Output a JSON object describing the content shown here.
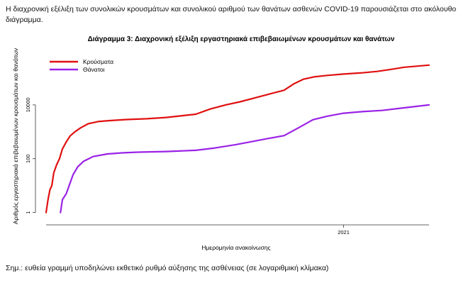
{
  "intro_text": "Η διαχρονική εξέλιξη των συνολικών κρουσμάτων και συνολικού αριθμού των θανάτων ασθενών COVID-19 παρουσιάζεται στο ακόλουθο διάγραμμα.",
  "footnote": "Σημ.: ευθεία γραμμή υποδηλώνει εκθετικό ρυθμό αύξησης της ασθένειας (σε λογαριθμική κλίμακα)",
  "chart_data": {
    "type": "line",
    "title": "Διάγραμμα 3: Διαχρονική εξέλιξη εργαστηριακά επιβεβαιωμένων κρουσμάτων και θανάτων",
    "xlabel": "Ημερομηνία ανακοίνωσης",
    "ylabel": "Αριθμός εργαστηριακά επιβεβαιωμένων κρουσμάτων και θανάτων",
    "y_scale": "log",
    "ylim": [
      0.5,
      1000000
    ],
    "y_ticks": [
      1,
      100,
      10000
    ],
    "y_tick_labels": [
      "1",
      "100",
      "10000"
    ],
    "x_range": [
      "2020-02-26",
      "2021-03-31"
    ],
    "x_ticks": [
      "2021-01-01"
    ],
    "x_tick_labels": [
      "2021"
    ],
    "legend_position": "top-left",
    "series": [
      {
        "name": "Κρούσματα",
        "color": "#e01010",
        "points": [
          [
            "2020-02-26",
            1
          ],
          [
            "2020-02-28",
            3
          ],
          [
            "2020-03-01",
            7
          ],
          [
            "2020-03-03",
            10
          ],
          [
            "2020-03-05",
            30
          ],
          [
            "2020-03-08",
            60
          ],
          [
            "2020-03-11",
            100
          ],
          [
            "2020-03-14",
            230
          ],
          [
            "2020-03-18",
            420
          ],
          [
            "2020-03-22",
            700
          ],
          [
            "2020-03-27",
            1000
          ],
          [
            "2020-04-02",
            1400
          ],
          [
            "2020-04-10",
            2000
          ],
          [
            "2020-04-20",
            2400
          ],
          [
            "2020-05-01",
            2600
          ],
          [
            "2020-05-20",
            2850
          ],
          [
            "2020-06-10",
            3050
          ],
          [
            "2020-06-30",
            3400
          ],
          [
            "2020-07-15",
            3900
          ],
          [
            "2020-07-31",
            4500
          ],
          [
            "2020-08-15",
            7000
          ],
          [
            "2020-08-31",
            10000
          ],
          [
            "2020-09-15",
            13000
          ],
          [
            "2020-09-30",
            18000
          ],
          [
            "2020-10-15",
            25000
          ],
          [
            "2020-10-31",
            35000
          ],
          [
            "2020-11-10",
            60000
          ],
          [
            "2020-11-20",
            90000
          ],
          [
            "2020-12-01",
            110000
          ],
          [
            "2020-12-15",
            125000
          ],
          [
            "2021-01-01",
            140000
          ],
          [
            "2021-01-20",
            155000
          ],
          [
            "2021-02-05",
            175000
          ],
          [
            "2021-02-20",
            210000
          ],
          [
            "2021-03-05",
            250000
          ],
          [
            "2021-03-31",
            300000
          ]
        ]
      },
      {
        "name": "Θάνατοι",
        "color": "#9a22e6",
        "points": [
          [
            "2020-03-12",
            1
          ],
          [
            "2020-03-14",
            3
          ],
          [
            "2020-03-18",
            5
          ],
          [
            "2020-03-21",
            10
          ],
          [
            "2020-03-25",
            25
          ],
          [
            "2020-03-30",
            50
          ],
          [
            "2020-04-05",
            80
          ],
          [
            "2020-04-15",
            120
          ],
          [
            "2020-04-30",
            150
          ],
          [
            "2020-05-15",
            165
          ],
          [
            "2020-06-01",
            175
          ],
          [
            "2020-06-30",
            185
          ],
          [
            "2020-07-31",
            205
          ],
          [
            "2020-08-20",
            250
          ],
          [
            "2020-09-10",
            330
          ],
          [
            "2020-09-30",
            450
          ],
          [
            "2020-10-15",
            570
          ],
          [
            "2020-10-31",
            720
          ],
          [
            "2020-11-15",
            1400
          ],
          [
            "2020-11-30",
            2800
          ],
          [
            "2020-12-15",
            3800
          ],
          [
            "2021-01-01",
            4900
          ],
          [
            "2021-01-20",
            5600
          ],
          [
            "2021-02-10",
            6200
          ],
          [
            "2021-03-01",
            7500
          ],
          [
            "2021-03-31",
            10000
          ]
        ]
      }
    ]
  }
}
